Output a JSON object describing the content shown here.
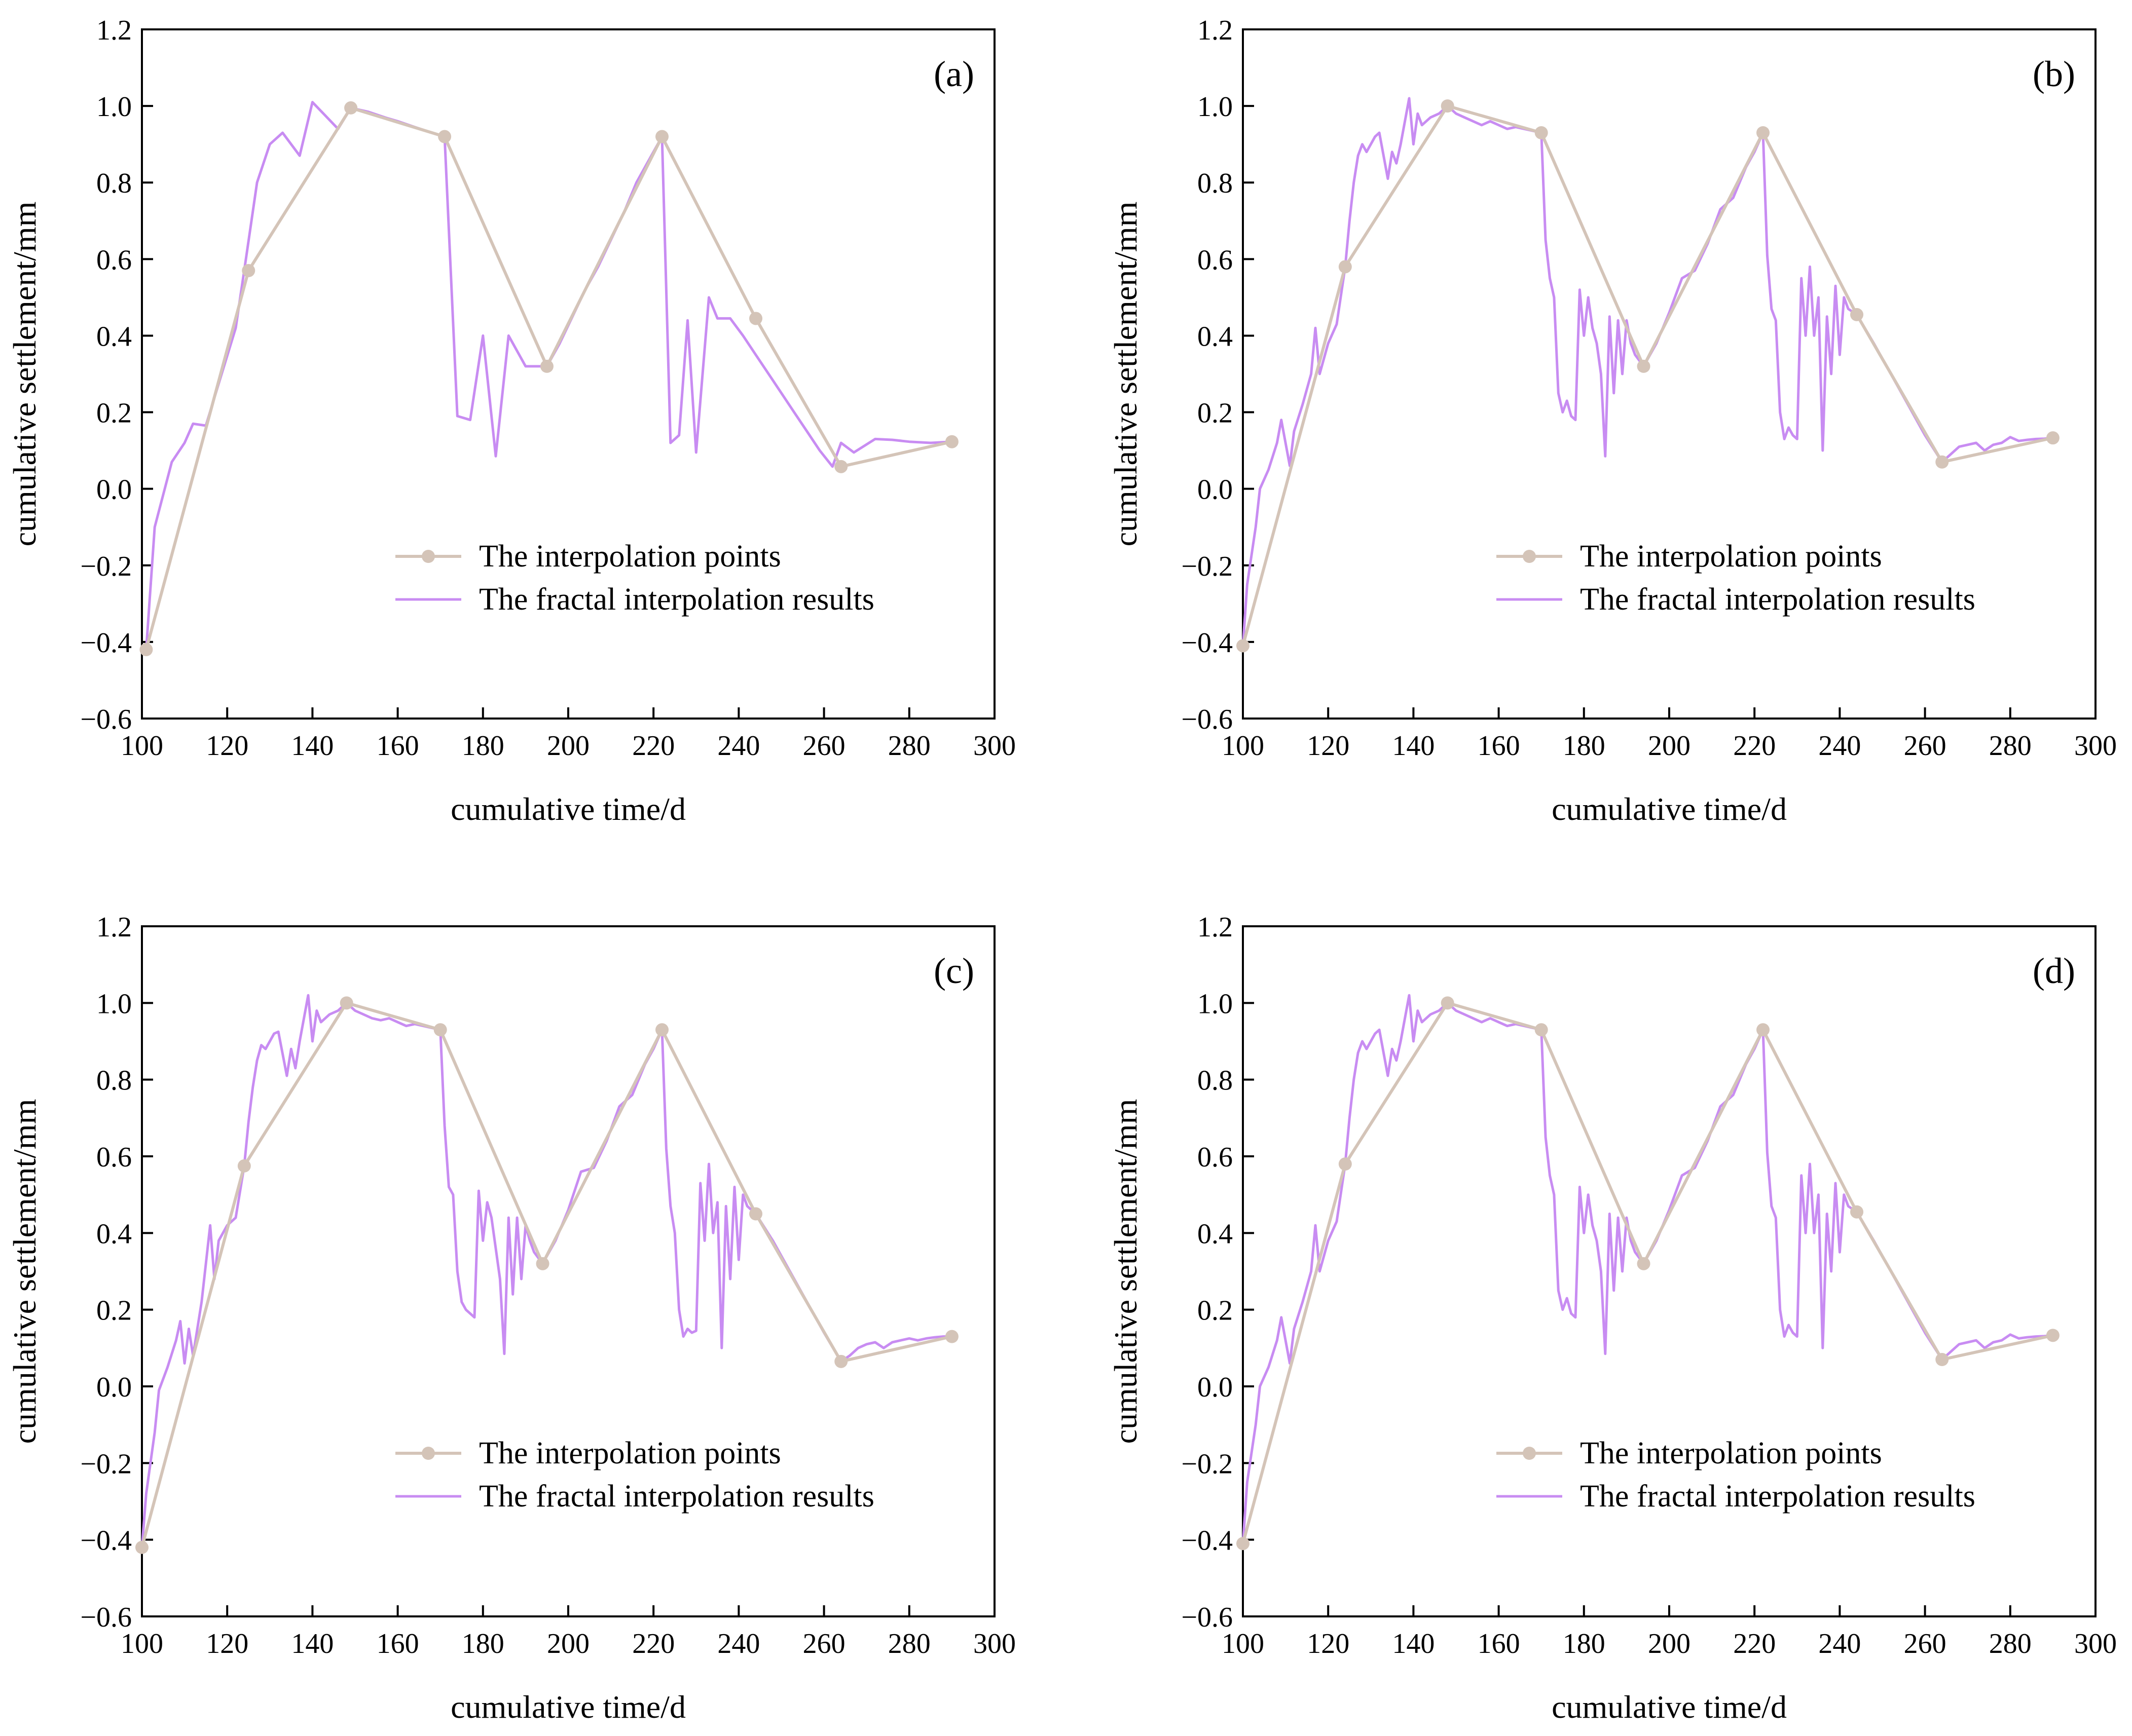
{
  "colors": {
    "interpolation": "#d4c4b8",
    "fractal": "#c88cf2",
    "axis": "#000000"
  },
  "chart_data": [
    {
      "type": "line",
      "panel": "(a)",
      "xlabel": "cumulative time/d",
      "ylabel": "cumulative settlement/mm",
      "xlim": [
        100,
        300
      ],
      "ylim": [
        -0.6,
        1.2
      ],
      "xticks": [
        100,
        120,
        140,
        160,
        180,
        200,
        220,
        240,
        260,
        280,
        300
      ],
      "yticks": [
        -0.6,
        -0.4,
        -0.2,
        0.0,
        0.2,
        0.4,
        0.6,
        0.8,
        1.0,
        1.2
      ],
      "legend_position": "lower-right",
      "series": [
        {
          "name": "The interpolation points",
          "color_key": "interpolation",
          "markers": true,
          "x": [
            101,
            125,
            149,
            171,
            195,
            222,
            244,
            264,
            290
          ],
          "y": [
            -0.42,
            0.57,
            0.995,
            0.92,
            0.32,
            0.92,
            0.445,
            0.058,
            0.123
          ]
        },
        {
          "name": "The fractal interpolation results",
          "color_key": "fractal",
          "markers": false,
          "x": [
            101,
            103,
            107,
            110,
            112,
            115,
            122,
            124,
            127,
            130,
            133,
            137,
            140,
            146,
            149,
            153,
            157,
            160,
            164,
            168,
            171,
            174,
            177,
            180,
            183,
            186,
            190,
            193,
            195,
            198,
            201,
            204,
            207,
            210,
            213,
            216,
            219,
            222,
            224,
            226,
            228,
            230,
            233,
            235,
            238,
            241,
            244,
            247,
            250,
            253,
            256,
            259,
            262,
            264,
            267,
            272,
            276,
            280,
            285,
            290
          ],
          "y": [
            -0.42,
            -0.1,
            0.07,
            0.12,
            0.17,
            0.165,
            0.42,
            0.57,
            0.8,
            0.9,
            0.93,
            0.87,
            1.01,
            0.94,
            0.995,
            0.985,
            0.97,
            0.96,
            0.945,
            0.93,
            0.92,
            0.19,
            0.18,
            0.4,
            0.085,
            0.4,
            0.32,
            0.32,
            0.32,
            0.38,
            0.45,
            0.52,
            0.58,
            0.65,
            0.72,
            0.8,
            0.86,
            0.92,
            0.12,
            0.14,
            0.44,
            0.095,
            0.5,
            0.445,
            0.445,
            0.4,
            0.35,
            0.3,
            0.25,
            0.2,
            0.15,
            0.1,
            0.058,
            0.12,
            0.095,
            0.13,
            0.128,
            0.123,
            0.12,
            0.123
          ]
        }
      ]
    },
    {
      "type": "line",
      "panel": "(b)",
      "xlabel": "cumulative time/d",
      "ylabel": "cumulative settlement/mm",
      "xlim": [
        100,
        300
      ],
      "ylim": [
        -0.6,
        1.2
      ],
      "xticks": [
        100,
        120,
        140,
        160,
        180,
        200,
        220,
        240,
        260,
        280,
        300
      ],
      "yticks": [
        -0.6,
        -0.4,
        -0.2,
        0.0,
        0.2,
        0.4,
        0.6,
        0.8,
        1.0,
        1.2
      ],
      "legend_position": "lower-right",
      "series": [
        {
          "name": "The interpolation points",
          "color_key": "interpolation",
          "markers": true,
          "x": [
            100,
            124,
            148,
            170,
            194,
            222,
            244,
            264,
            290
          ],
          "y": [
            -0.41,
            0.58,
            1.0,
            0.93,
            0.32,
            0.93,
            0.455,
            0.07,
            0.133
          ]
        },
        {
          "name": "The fractal interpolation results",
          "color_key": "fractal",
          "markers": false,
          "x": [
            100,
            101,
            103,
            104,
            106,
            108,
            109,
            111,
            112,
            114,
            116,
            117,
            118,
            120,
            122,
            124,
            125,
            126,
            127,
            128,
            129,
            131,
            132,
            134,
            135,
            136,
            137,
            139,
            140,
            141,
            142,
            144,
            146,
            148,
            150,
            152,
            154,
            156,
            158,
            160,
            162,
            164,
            166,
            168,
            170,
            171,
            172,
            173,
            174,
            175,
            176,
            177,
            178,
            179,
            180,
            181,
            182,
            183,
            184,
            185,
            186,
            187,
            188,
            189,
            190,
            191,
            192,
            194,
            197,
            200,
            203,
            206,
            209,
            212,
            215,
            218,
            220,
            222,
            223,
            224,
            225,
            226,
            227,
            228,
            229,
            230,
            231,
            232,
            233,
            234,
            235,
            236,
            237,
            238,
            239,
            240,
            241,
            242,
            244,
            248,
            252,
            256,
            260,
            264,
            266,
            268,
            270,
            272,
            274,
            276,
            278,
            280,
            282,
            284,
            286,
            288,
            290
          ],
          "y": [
            -0.41,
            -0.25,
            -0.1,
            0.0,
            0.05,
            0.12,
            0.18,
            0.06,
            0.15,
            0.22,
            0.3,
            0.42,
            0.3,
            0.38,
            0.43,
            0.58,
            0.7,
            0.8,
            0.87,
            0.9,
            0.88,
            0.92,
            0.93,
            0.81,
            0.88,
            0.85,
            0.9,
            1.02,
            0.9,
            0.98,
            0.95,
            0.97,
            0.98,
            1.0,
            0.98,
            0.97,
            0.96,
            0.95,
            0.96,
            0.95,
            0.94,
            0.945,
            0.94,
            0.935,
            0.93,
            0.65,
            0.55,
            0.5,
            0.25,
            0.2,
            0.23,
            0.19,
            0.18,
            0.52,
            0.4,
            0.5,
            0.42,
            0.38,
            0.3,
            0.085,
            0.45,
            0.25,
            0.44,
            0.3,
            0.44,
            0.38,
            0.35,
            0.32,
            0.38,
            0.46,
            0.55,
            0.57,
            0.64,
            0.73,
            0.76,
            0.84,
            0.88,
            0.93,
            0.61,
            0.47,
            0.44,
            0.2,
            0.13,
            0.16,
            0.14,
            0.13,
            0.55,
            0.4,
            0.58,
            0.4,
            0.5,
            0.1,
            0.45,
            0.3,
            0.53,
            0.35,
            0.5,
            0.47,
            0.455,
            0.38,
            0.3,
            0.22,
            0.14,
            0.07,
            0.09,
            0.11,
            0.115,
            0.12,
            0.1,
            0.115,
            0.12,
            0.135,
            0.125,
            0.128,
            0.13,
            0.131,
            0.133
          ]
        }
      ]
    },
    {
      "type": "line",
      "panel": "(c)",
      "xlabel": "cumulative time/d",
      "ylabel": "cumulative settlement/mm",
      "xlim": [
        100,
        300
      ],
      "ylim": [
        -0.6,
        1.2
      ],
      "xticks": [
        100,
        120,
        140,
        160,
        180,
        200,
        220,
        240,
        260,
        280,
        300
      ],
      "yticks": [
        -0.6,
        -0.4,
        -0.2,
        0.0,
        0.2,
        0.4,
        0.6,
        0.8,
        1.0,
        1.2
      ],
      "legend_position": "lower-right",
      "series": [
        {
          "name": "The interpolation points",
          "color_key": "interpolation",
          "markers": true,
          "x": [
            100,
            124,
            148,
            170,
            194,
            222,
            244,
            264,
            290
          ],
          "y": [
            -0.42,
            0.575,
            1.0,
            0.93,
            0.32,
            0.93,
            0.45,
            0.065,
            0.13
          ]
        },
        {
          "name": "The fractal interpolation results",
          "color_key": "fractal",
          "markers": false,
          "x": [
            100,
            101,
            103,
            104,
            106,
            108,
            109,
            110,
            111,
            112,
            114,
            116,
            117,
            118,
            120,
            122,
            124,
            125,
            126,
            127,
            128,
            129,
            131,
            132,
            134,
            135,
            136,
            137,
            139,
            140,
            141,
            142,
            144,
            146,
            148,
            150,
            152,
            154,
            156,
            158,
            160,
            162,
            164,
            166,
            168,
            170,
            171,
            172,
            173,
            174,
            175,
            176,
            177,
            178,
            179,
            180,
            181,
            182,
            183,
            184,
            185,
            186,
            187,
            188,
            189,
            190,
            191,
            192,
            194,
            197,
            200,
            203,
            206,
            209,
            212,
            215,
            218,
            220,
            222,
            223,
            224,
            225,
            226,
            227,
            228,
            229,
            230,
            231,
            232,
            233,
            234,
            235,
            236,
            237,
            238,
            239,
            240,
            241,
            242,
            244,
            248,
            252,
            256,
            260,
            264,
            266,
            268,
            270,
            272,
            274,
            276,
            278,
            280,
            282,
            284,
            286,
            288,
            290
          ],
          "y": [
            -0.42,
            -0.28,
            -0.12,
            -0.01,
            0.05,
            0.12,
            0.17,
            0.06,
            0.15,
            0.08,
            0.22,
            0.42,
            0.28,
            0.38,
            0.42,
            0.44,
            0.575,
            0.69,
            0.78,
            0.85,
            0.89,
            0.88,
            0.92,
            0.925,
            0.81,
            0.88,
            0.83,
            0.9,
            1.02,
            0.9,
            0.98,
            0.95,
            0.97,
            0.98,
            1.0,
            0.98,
            0.97,
            0.96,
            0.955,
            0.96,
            0.95,
            0.94,
            0.945,
            0.94,
            0.935,
            0.93,
            0.68,
            0.52,
            0.5,
            0.3,
            0.22,
            0.2,
            0.19,
            0.18,
            0.51,
            0.38,
            0.48,
            0.44,
            0.36,
            0.28,
            0.085,
            0.44,
            0.24,
            0.44,
            0.28,
            0.42,
            0.38,
            0.35,
            0.32,
            0.38,
            0.46,
            0.56,
            0.57,
            0.64,
            0.73,
            0.76,
            0.84,
            0.88,
            0.93,
            0.62,
            0.47,
            0.4,
            0.2,
            0.13,
            0.15,
            0.14,
            0.145,
            0.53,
            0.38,
            0.58,
            0.4,
            0.48,
            0.1,
            0.47,
            0.28,
            0.52,
            0.33,
            0.5,
            0.47,
            0.45,
            0.38,
            0.3,
            0.22,
            0.14,
            0.065,
            0.08,
            0.1,
            0.11,
            0.115,
            0.1,
            0.115,
            0.12,
            0.125,
            0.12,
            0.125,
            0.128,
            0.13,
            0.13
          ]
        }
      ]
    },
    {
      "type": "line",
      "panel": "(d)",
      "xlabel": "cumulative time/d",
      "ylabel": "cumulative settlement/mm",
      "xlim": [
        100,
        300
      ],
      "ylim": [
        -0.6,
        1.2
      ],
      "xticks": [
        100,
        120,
        140,
        160,
        180,
        200,
        220,
        240,
        260,
        280,
        300
      ],
      "yticks": [
        -0.6,
        -0.4,
        -0.2,
        0.0,
        0.2,
        0.4,
        0.6,
        0.8,
        1.0,
        1.2
      ],
      "legend_position": "lower-right",
      "series": [
        {
          "name": "The interpolation points",
          "color_key": "interpolation",
          "markers": true,
          "x": [
            100,
            124,
            148,
            170,
            194,
            222,
            244,
            264,
            290
          ],
          "y": [
            -0.41,
            0.58,
            1.0,
            0.93,
            0.32,
            0.93,
            0.455,
            0.07,
            0.133
          ]
        },
        {
          "name": "The fractal interpolation results",
          "color_key": "fractal",
          "markers": false,
          "x": [
            100,
            101,
            103,
            104,
            106,
            108,
            109,
            111,
            112,
            114,
            116,
            117,
            118,
            120,
            122,
            124,
            125,
            126,
            127,
            128,
            129,
            131,
            132,
            134,
            135,
            136,
            137,
            139,
            140,
            141,
            142,
            144,
            146,
            148,
            150,
            152,
            154,
            156,
            158,
            160,
            162,
            164,
            166,
            168,
            170,
            171,
            172,
            173,
            174,
            175,
            176,
            177,
            178,
            179,
            180,
            181,
            182,
            183,
            184,
            185,
            186,
            187,
            188,
            189,
            190,
            191,
            192,
            194,
            197,
            200,
            203,
            206,
            209,
            212,
            215,
            218,
            220,
            222,
            223,
            224,
            225,
            226,
            227,
            228,
            229,
            230,
            231,
            232,
            233,
            234,
            235,
            236,
            237,
            238,
            239,
            240,
            241,
            242,
            244,
            248,
            252,
            256,
            260,
            264,
            266,
            268,
            270,
            272,
            274,
            276,
            278,
            280,
            282,
            284,
            286,
            288,
            290
          ],
          "y": [
            -0.41,
            -0.25,
            -0.1,
            0.0,
            0.05,
            0.12,
            0.18,
            0.06,
            0.15,
            0.22,
            0.3,
            0.42,
            0.3,
            0.38,
            0.43,
            0.58,
            0.7,
            0.8,
            0.87,
            0.9,
            0.88,
            0.92,
            0.93,
            0.81,
            0.88,
            0.85,
            0.9,
            1.02,
            0.9,
            0.98,
            0.95,
            0.97,
            0.98,
            1.0,
            0.98,
            0.97,
            0.96,
            0.95,
            0.96,
            0.95,
            0.94,
            0.945,
            0.94,
            0.935,
            0.93,
            0.65,
            0.55,
            0.5,
            0.25,
            0.2,
            0.23,
            0.19,
            0.18,
            0.52,
            0.4,
            0.5,
            0.42,
            0.38,
            0.3,
            0.085,
            0.45,
            0.25,
            0.44,
            0.3,
            0.44,
            0.38,
            0.35,
            0.32,
            0.38,
            0.46,
            0.55,
            0.57,
            0.64,
            0.73,
            0.76,
            0.84,
            0.88,
            0.93,
            0.61,
            0.47,
            0.44,
            0.2,
            0.13,
            0.16,
            0.14,
            0.13,
            0.55,
            0.4,
            0.58,
            0.4,
            0.5,
            0.1,
            0.45,
            0.3,
            0.53,
            0.35,
            0.5,
            0.47,
            0.455,
            0.38,
            0.3,
            0.22,
            0.14,
            0.07,
            0.09,
            0.11,
            0.115,
            0.12,
            0.1,
            0.115,
            0.12,
            0.135,
            0.125,
            0.128,
            0.13,
            0.131,
            0.133
          ]
        }
      ]
    }
  ]
}
